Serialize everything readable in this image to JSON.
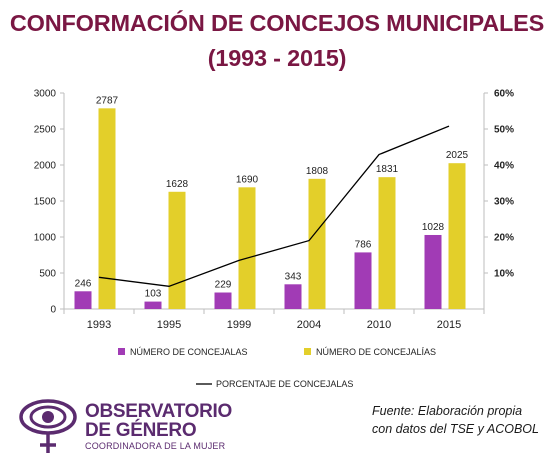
{
  "title": {
    "line1": "CONFORMACIÓN DE CONCEJOS MUNICIPALES",
    "line2": "(1993 - 2015)"
  },
  "chart_data": {
    "type": "bar",
    "categories": [
      "1993",
      "1995",
      "1999",
      "2004",
      "2010",
      "2015"
    ],
    "series": [
      {
        "name": "NÚMERO DE CONCEJALAS",
        "type": "bar",
        "axis": "left",
        "color": "#a13bb5",
        "values": [
          246,
          103,
          229,
          343,
          786,
          1028
        ]
      },
      {
        "name": "NÚMERO DE CONCEJALÍAS",
        "type": "bar",
        "axis": "left",
        "color": "#e3cf2a",
        "values": [
          2787,
          1628,
          1690,
          1808,
          1831,
          2025
        ]
      },
      {
        "name": "PORCENTAJE DE CONCEJALAS",
        "type": "line",
        "axis": "right",
        "color": "#000000",
        "values": [
          8.8,
          6.3,
          13.5,
          19.0,
          42.9,
          50.8
        ]
      }
    ],
    "y_left": {
      "min": 0,
      "max": 3000,
      "ticks": [
        "0",
        "500",
        "1000",
        "1500",
        "2000",
        "2500",
        "3000"
      ]
    },
    "y_right": {
      "min": 0,
      "max": 60,
      "ticks": [
        "10%",
        "20%",
        "30%",
        "40%",
        "50%",
        "60%"
      ]
    },
    "grid": false,
    "legend_position": "bottom"
  },
  "logo": {
    "line1": "OBSERVATORIO",
    "line2": "DE GÉNERO",
    "line3": "COORDINADORA DE LA MUJER",
    "color": "#5b2b6f"
  },
  "source": {
    "line1": "Fuente: Elaboración propia",
    "line2": "con datos  del TSE y ACOBOL"
  }
}
